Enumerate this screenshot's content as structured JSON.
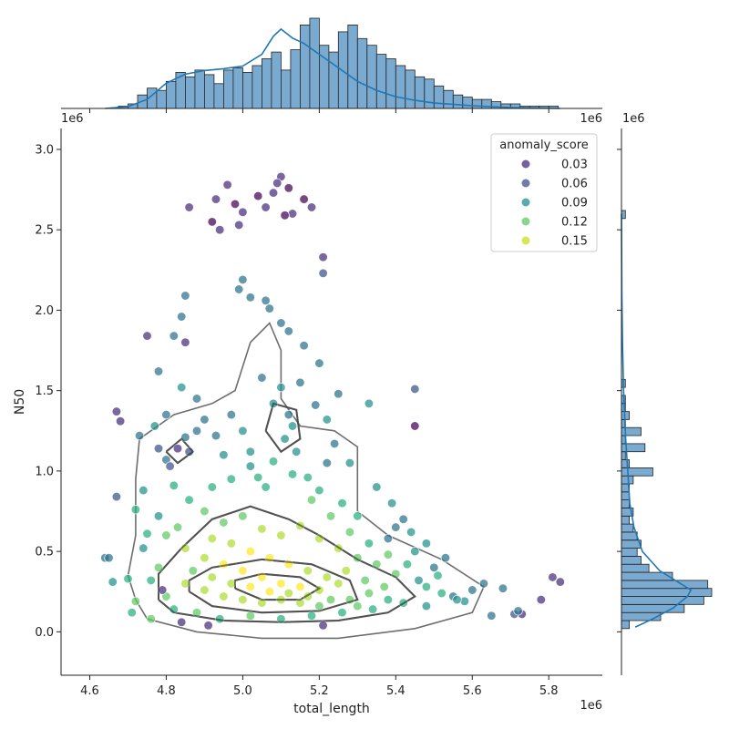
{
  "chart_data": {
    "type": "scatter",
    "xlabel": "total_length",
    "ylabel": "N50",
    "x_offset_label": "1e6",
    "y_offset_label": "1e6",
    "top_hist_offset_label": "1e6",
    "right_hist_offset_label": "1e6",
    "xlim": [
      4.525,
      5.94
    ],
    "ylim": [
      -0.27,
      3.13
    ],
    "x_ticks": [
      "4.6",
      "4.8",
      "5.0",
      "5.2",
      "5.4",
      "5.6",
      "5.8"
    ],
    "y_ticks": [
      "0.0",
      "0.5",
      "1.0",
      "1.5",
      "2.0",
      "2.5",
      "3.0"
    ],
    "legend": {
      "title": "anomaly_score",
      "placement": "top-right",
      "entries": [
        {
          "label": "0.03",
          "color": "#472d7b"
        },
        {
          "label": "0.06",
          "color": "#3b528b"
        },
        {
          "label": "0.09",
          "color": "#21918c"
        },
        {
          "label": "0.12",
          "color": "#5ec962"
        },
        {
          "label": "0.15",
          "color": "#c8e020"
        }
      ]
    },
    "point_color_scale": [
      "#440154",
      "#472d7b",
      "#3b528b",
      "#2c728e",
      "#21918c",
      "#28ae80",
      "#5ec962",
      "#addc30",
      "#fde725"
    ],
    "kde_color": "#555555",
    "hist_color": "#7aaad0",
    "kde_line_color": "#1f77b4",
    "points": [
      [
        5.1,
        2.83,
        0.02
      ],
      [
        5.09,
        2.79,
        0.02
      ],
      [
        5.12,
        2.76,
        0.01
      ],
      [
        5.04,
        2.71,
        0.01
      ],
      [
        4.96,
        2.78,
        0.02
      ],
      [
        4.93,
        2.69,
        0.02
      ],
      [
        4.98,
        2.66,
        0.01
      ],
      [
        5.0,
        2.61,
        0.02
      ],
      [
        4.86,
        2.64,
        0.02
      ],
      [
        4.92,
        2.55,
        0.01
      ],
      [
        4.94,
        2.5,
        0.02
      ],
      [
        4.99,
        2.53,
        0.02
      ],
      [
        5.06,
        2.64,
        0.02
      ],
      [
        5.13,
        2.6,
        0.02
      ],
      [
        5.16,
        2.69,
        0.01
      ],
      [
        5.18,
        2.64,
        0.02
      ],
      [
        5.11,
        2.59,
        0.01
      ],
      [
        5.08,
        2.73,
        0.02
      ],
      [
        5.21,
        2.33,
        0.03
      ],
      [
        5.21,
        2.23,
        0.04
      ],
      [
        4.75,
        1.84,
        0.02
      ],
      [
        4.67,
        1.37,
        0.02
      ],
      [
        4.68,
        1.31,
        0.03
      ],
      [
        4.67,
        0.84,
        0.04
      ],
      [
        5.45,
        1.51,
        0.05
      ],
      [
        5.45,
        1.28,
        0.01
      ],
      [
        5.73,
        0.11,
        0.03
      ],
      [
        5.71,
        0.11,
        0.04
      ],
      [
        5.78,
        0.2,
        0.03
      ],
      [
        5.81,
        0.34,
        0.02
      ],
      [
        5.83,
        0.31,
        0.03
      ],
      [
        5.72,
        0.13,
        0.06
      ],
      [
        5.65,
        0.1,
        0.06
      ],
      [
        5.55,
        0.22,
        0.06
      ],
      [
        5.63,
        0.3,
        0.07
      ],
      [
        5.68,
        0.27,
        0.06
      ],
      [
        4.64,
        0.46,
        0.06
      ],
      [
        4.65,
        0.46,
        0.06
      ],
      [
        4.66,
        0.31,
        0.09
      ],
      [
        4.73,
        1.22,
        0.06
      ],
      [
        4.82,
        1.84,
        0.06
      ],
      [
        4.85,
        2.09,
        0.06
      ],
      [
        4.85,
        1.8,
        0.03
      ],
      [
        4.84,
        1.96,
        0.07
      ],
      [
        5.0,
        2.19,
        0.06
      ],
      [
        4.99,
        2.13,
        0.07
      ],
      [
        5.02,
        2.08,
        0.06
      ],
      [
        5.06,
        2.06,
        0.06
      ],
      [
        5.07,
        2.01,
        0.06
      ],
      [
        5.1,
        1.92,
        0.07
      ],
      [
        5.12,
        1.87,
        0.06
      ],
      [
        5.16,
        1.78,
        0.06
      ],
      [
        5.2,
        1.67,
        0.06
      ],
      [
        4.78,
        1.62,
        0.06
      ],
      [
        5.33,
        1.42,
        0.09
      ],
      [
        4.74,
        0.88,
        0.09
      ],
      [
        4.72,
        0.76,
        0.1
      ],
      [
        4.75,
        0.61,
        0.11
      ],
      [
        5.4,
        0.65,
        0.06
      ],
      [
        5.53,
        0.46,
        0.06
      ],
      [
        5.5,
        0.4,
        0.07
      ],
      [
        5.58,
        0.19,
        0.08
      ],
      [
        5.6,
        0.26,
        0.07
      ],
      [
        4.7,
        0.33,
        0.1
      ],
      [
        4.72,
        0.19,
        0.12
      ],
      [
        4.71,
        0.12,
        0.1
      ],
      [
        4.76,
        0.08,
        0.12
      ],
      [
        4.78,
        1.14,
        0.05
      ],
      [
        4.8,
        1.07,
        0.06
      ],
      [
        4.83,
        1.14,
        0.03
      ],
      [
        4.86,
        1.12,
        0.05
      ],
      [
        4.81,
        1.03,
        0.04
      ],
      [
        4.85,
        1.21,
        0.06
      ],
      [
        4.88,
        1.25,
        0.07
      ],
      [
        5.1,
        1.52,
        0.08
      ],
      [
        5.08,
        1.42,
        0.08
      ],
      [
        5.12,
        1.35,
        0.07
      ],
      [
        5.13,
        1.28,
        0.09
      ],
      [
        5.11,
        1.2,
        0.08
      ],
      [
        5.14,
        1.12,
        0.09
      ],
      [
        5.19,
        1.41,
        0.07
      ],
      [
        5.22,
        1.32,
        0.08
      ],
      [
        5.24,
        1.17,
        0.07
      ],
      [
        5.28,
        1.05,
        0.08
      ],
      [
        5.35,
        0.9,
        0.08
      ],
      [
        5.39,
        0.8,
        0.09
      ],
      [
        5.42,
        0.7,
        0.07
      ],
      [
        5.44,
        0.62,
        0.09
      ],
      [
        5.48,
        0.55,
        0.08
      ],
      [
        5.46,
        0.32,
        0.08
      ],
      [
        4.9,
        1.32,
        0.06
      ],
      [
        4.93,
        1.22,
        0.07
      ],
      [
        4.95,
        1.1,
        0.08
      ],
      [
        4.97,
        1.35,
        0.07
      ],
      [
        5.0,
        1.25,
        0.08
      ],
      [
        5.02,
        1.03,
        0.09
      ],
      [
        5.04,
        0.96,
        0.1
      ],
      [
        5.06,
        0.9,
        0.1
      ],
      [
        5.17,
        0.96,
        0.1
      ],
      [
        5.2,
        0.88,
        0.1
      ],
      [
        5.26,
        0.8,
        0.11
      ],
      [
        5.3,
        0.72,
        0.11
      ],
      [
        4.82,
        0.91,
        0.1
      ],
      [
        4.86,
        0.82,
        0.11
      ],
      [
        4.9,
        0.75,
        0.12
      ],
      [
        4.95,
        0.68,
        0.13
      ],
      [
        5.0,
        0.72,
        0.13
      ],
      [
        5.05,
        0.64,
        0.14
      ],
      [
        5.1,
        0.6,
        0.15
      ],
      [
        5.15,
        0.66,
        0.14
      ],
      [
        5.2,
        0.58,
        0.15
      ],
      [
        5.25,
        0.52,
        0.14
      ],
      [
        5.3,
        0.46,
        0.13
      ],
      [
        5.35,
        0.42,
        0.12
      ],
      [
        5.4,
        0.36,
        0.12
      ],
      [
        4.8,
        0.6,
        0.13
      ],
      [
        4.85,
        0.52,
        0.14
      ],
      [
        4.9,
        0.46,
        0.15
      ],
      [
        4.95,
        0.42,
        0.16
      ],
      [
        5.0,
        0.38,
        0.16
      ],
      [
        5.05,
        0.34,
        0.17
      ],
      [
        5.1,
        0.3,
        0.17
      ],
      [
        5.15,
        0.28,
        0.16
      ],
      [
        5.2,
        0.26,
        0.15
      ],
      [
        5.25,
        0.3,
        0.15
      ],
      [
        4.85,
        0.3,
        0.14
      ],
      [
        4.9,
        0.26,
        0.15
      ],
      [
        4.95,
        0.22,
        0.15
      ],
      [
        5.0,
        0.2,
        0.14
      ],
      [
        5.05,
        0.18,
        0.14
      ],
      [
        5.1,
        0.2,
        0.15
      ],
      [
        5.15,
        0.18,
        0.14
      ],
      [
        5.2,
        0.16,
        0.13
      ],
      [
        5.28,
        0.2,
        0.13
      ],
      [
        5.33,
        0.24,
        0.12
      ],
      [
        4.78,
        0.4,
        0.12
      ],
      [
        4.76,
        0.32,
        0.11
      ],
      [
        4.8,
        0.22,
        0.12
      ],
      [
        4.82,
        0.14,
        0.11
      ],
      [
        4.88,
        0.12,
        0.12
      ],
      [
        4.94,
        0.08,
        0.11
      ],
      [
        5.02,
        0.1,
        0.12
      ],
      [
        5.1,
        0.08,
        0.11
      ],
      [
        5.18,
        0.1,
        0.1
      ],
      [
        5.26,
        0.12,
        0.11
      ],
      [
        5.34,
        0.14,
        0.1
      ],
      [
        5.42,
        0.18,
        0.1
      ],
      [
        5.48,
        0.16,
        0.09
      ],
      [
        4.84,
        0.06,
        0.03
      ],
      [
        4.91,
        0.04,
        0.02
      ],
      [
        5.21,
        0.04,
        0.02
      ],
      [
        4.79,
        0.26,
        0.02
      ],
      [
        5.38,
        0.58,
        0.07
      ],
      [
        5.45,
        0.5,
        0.09
      ],
      [
        5.51,
        0.35,
        0.1
      ],
      [
        4.74,
        0.52,
        0.09
      ],
      [
        4.78,
        0.72,
        0.08
      ],
      [
        4.83,
        0.65,
        0.12
      ],
      [
        4.92,
        0.9,
        0.1
      ],
      [
        4.97,
        0.95,
        0.11
      ],
      [
        5.02,
        1.12,
        0.09
      ],
      [
        5.08,
        1.06,
        0.1
      ],
      [
        5.13,
        0.98,
        0.11
      ],
      [
        5.18,
        0.82,
        0.12
      ],
      [
        5.23,
        0.72,
        0.13
      ],
      [
        5.28,
        0.62,
        0.12
      ],
      [
        5.33,
        0.55,
        0.11
      ],
      [
        5.38,
        0.48,
        0.12
      ],
      [
        5.43,
        0.42,
        0.11
      ],
      [
        5.48,
        0.28,
        0.1
      ],
      [
        5.52,
        0.24,
        0.1
      ],
      [
        5.56,
        0.2,
        0.09
      ],
      [
        5.22,
        1.05,
        0.06
      ],
      [
        5.25,
        1.48,
        0.07
      ],
      [
        5.15,
        1.55,
        0.06
      ],
      [
        5.05,
        1.58,
        0.07
      ],
      [
        4.88,
        1.45,
        0.07
      ],
      [
        4.84,
        1.52,
        0.08
      ],
      [
        4.8,
        1.35,
        0.07
      ],
      [
        4.77,
        1.28,
        0.09
      ],
      [
        4.92,
        0.58,
        0.14
      ],
      [
        4.97,
        0.55,
        0.15
      ],
      [
        5.02,
        0.5,
        0.16
      ],
      [
        5.07,
        0.46,
        0.16
      ],
      [
        5.12,
        0.42,
        0.16
      ],
      [
        5.17,
        0.38,
        0.15
      ],
      [
        5.22,
        0.34,
        0.14
      ],
      [
        5.27,
        0.38,
        0.14
      ],
      [
        5.32,
        0.32,
        0.13
      ],
      [
        5.37,
        0.28,
        0.12
      ],
      [
        4.87,
        0.38,
        0.13
      ],
      [
        4.92,
        0.34,
        0.14
      ],
      [
        4.97,
        0.3,
        0.15
      ],
      [
        5.02,
        0.28,
        0.16
      ],
      [
        5.07,
        0.25,
        0.16
      ],
      [
        5.12,
        0.24,
        0.15
      ],
      [
        5.17,
        0.22,
        0.14
      ],
      [
        5.23,
        0.2,
        0.13
      ],
      [
        5.3,
        0.16,
        0.12
      ],
      [
        5.38,
        0.2,
        0.11
      ]
    ],
    "contours": [
      [
        [
          4.72,
          0.2
        ],
        [
          4.75,
          0.08
        ],
        [
          4.88,
          0.0
        ],
        [
          5.05,
          -0.04
        ],
        [
          5.25,
          -0.04
        ],
        [
          5.45,
          0.02
        ],
        [
          5.6,
          0.12
        ],
        [
          5.63,
          0.28
        ],
        [
          5.52,
          0.45
        ],
        [
          5.38,
          0.6
        ],
        [
          5.3,
          0.75
        ],
        [
          5.3,
          0.92
        ],
        [
          5.3,
          1.15
        ],
        [
          5.24,
          1.25
        ],
        [
          5.15,
          1.28
        ],
        [
          5.1,
          1.45
        ],
        [
          5.1,
          1.75
        ],
        [
          5.07,
          1.92
        ],
        [
          5.02,
          1.8
        ],
        [
          4.98,
          1.5
        ],
        [
          4.92,
          1.42
        ],
        [
          4.82,
          1.35
        ],
        [
          4.73,
          1.2
        ],
        [
          4.72,
          0.95
        ],
        [
          4.72,
          0.6
        ],
        [
          4.7,
          0.35
        ],
        [
          4.72,
          0.2
        ]
      ],
      [
        [
          4.78,
          0.2
        ],
        [
          4.82,
          0.12
        ],
        [
          4.95,
          0.07
        ],
        [
          5.1,
          0.06
        ],
        [
          5.25,
          0.07
        ],
        [
          5.38,
          0.12
        ],
        [
          5.45,
          0.22
        ],
        [
          5.4,
          0.34
        ],
        [
          5.3,
          0.45
        ],
        [
          5.2,
          0.6
        ],
        [
          5.12,
          0.7
        ],
        [
          5.02,
          0.78
        ],
        [
          4.92,
          0.7
        ],
        [
          4.84,
          0.52
        ],
        [
          4.78,
          0.36
        ],
        [
          4.78,
          0.2
        ]
      ],
      [
        [
          4.86,
          0.25
        ],
        [
          4.92,
          0.16
        ],
        [
          5.05,
          0.12
        ],
        [
          5.2,
          0.13
        ],
        [
          5.3,
          0.2
        ],
        [
          5.28,
          0.32
        ],
        [
          5.18,
          0.42
        ],
        [
          5.05,
          0.45
        ],
        [
          4.92,
          0.4
        ],
        [
          4.86,
          0.32
        ],
        [
          4.86,
          0.25
        ]
      ],
      [
        [
          4.98,
          0.27
        ],
        [
          5.05,
          0.2
        ],
        [
          5.15,
          0.2
        ],
        [
          5.2,
          0.27
        ],
        [
          5.15,
          0.34
        ],
        [
          5.05,
          0.36
        ],
        [
          4.98,
          0.32
        ],
        [
          4.98,
          0.27
        ]
      ],
      [
        [
          5.06,
          1.25
        ],
        [
          5.1,
          1.12
        ],
        [
          5.15,
          1.2
        ],
        [
          5.14,
          1.38
        ],
        [
          5.08,
          1.42
        ],
        [
          5.06,
          1.25
        ]
      ],
      [
        [
          4.8,
          1.12
        ],
        [
          4.83,
          1.05
        ],
        [
          4.87,
          1.12
        ],
        [
          4.84,
          1.2
        ],
        [
          4.8,
          1.12
        ]
      ]
    ],
    "top_hist": {
      "bin_start": 4.6,
      "bin_width": 0.025,
      "counts": [
        0,
        0,
        0,
        1,
        2,
        6,
        9,
        8,
        12,
        16,
        14,
        17,
        15,
        11,
        17,
        18,
        16,
        19,
        22,
        25,
        17,
        26,
        37,
        40,
        28,
        25,
        34,
        37,
        31,
        28,
        24,
        22,
        19,
        17,
        14,
        13,
        10,
        8,
        6,
        5,
        4,
        4,
        3,
        2,
        2,
        1,
        1,
        1,
        1,
        0,
        0,
        0
      ]
    },
    "top_kde_x": [
      4.64,
      4.7,
      4.75,
      4.8,
      4.85,
      4.9,
      4.95,
      5.0,
      5.05,
      5.08,
      5.1,
      5.13,
      5.16,
      5.2,
      5.25,
      5.3,
      5.35,
      5.4,
      5.45,
      5.5,
      5.6,
      5.7,
      5.83
    ],
    "top_kde_y": [
      0.0,
      0.02,
      0.1,
      0.28,
      0.38,
      0.42,
      0.44,
      0.47,
      0.6,
      0.8,
      0.88,
      0.78,
      0.72,
      0.6,
      0.45,
      0.3,
      0.2,
      0.13,
      0.09,
      0.06,
      0.03,
      0.01,
      0.0
    ],
    "right_hist": {
      "bin_start": 0.02,
      "bin_width": 0.05,
      "counts": [
        2,
        10,
        16,
        21,
        23,
        22,
        13,
        7,
        5,
        4,
        5,
        4,
        3,
        2,
        3,
        2,
        2,
        2,
        3,
        8,
        2,
        1,
        6,
        1,
        5,
        1,
        2,
        1,
        1,
        0,
        1,
        0,
        0,
        0,
        0,
        0,
        0,
        0,
        0,
        0,
        0,
        0,
        0,
        0,
        0,
        0,
        0,
        0,
        0,
        0,
        0,
        1,
        0,
        0,
        0,
        0
      ]
    },
    "right_kde_y": [
      0.03,
      0.08,
      0.15,
      0.22,
      0.26,
      0.3,
      0.38,
      0.5,
      0.65,
      0.8,
      1.0,
      1.2,
      1.5,
      1.8,
      2.1,
      2.6
    ],
    "right_kde_x": [
      0.2,
      0.45,
      0.75,
      0.95,
      1.0,
      0.85,
      0.55,
      0.3,
      0.18,
      0.12,
      0.09,
      0.06,
      0.03,
      0.015,
      0.005,
      0.0
    ]
  }
}
